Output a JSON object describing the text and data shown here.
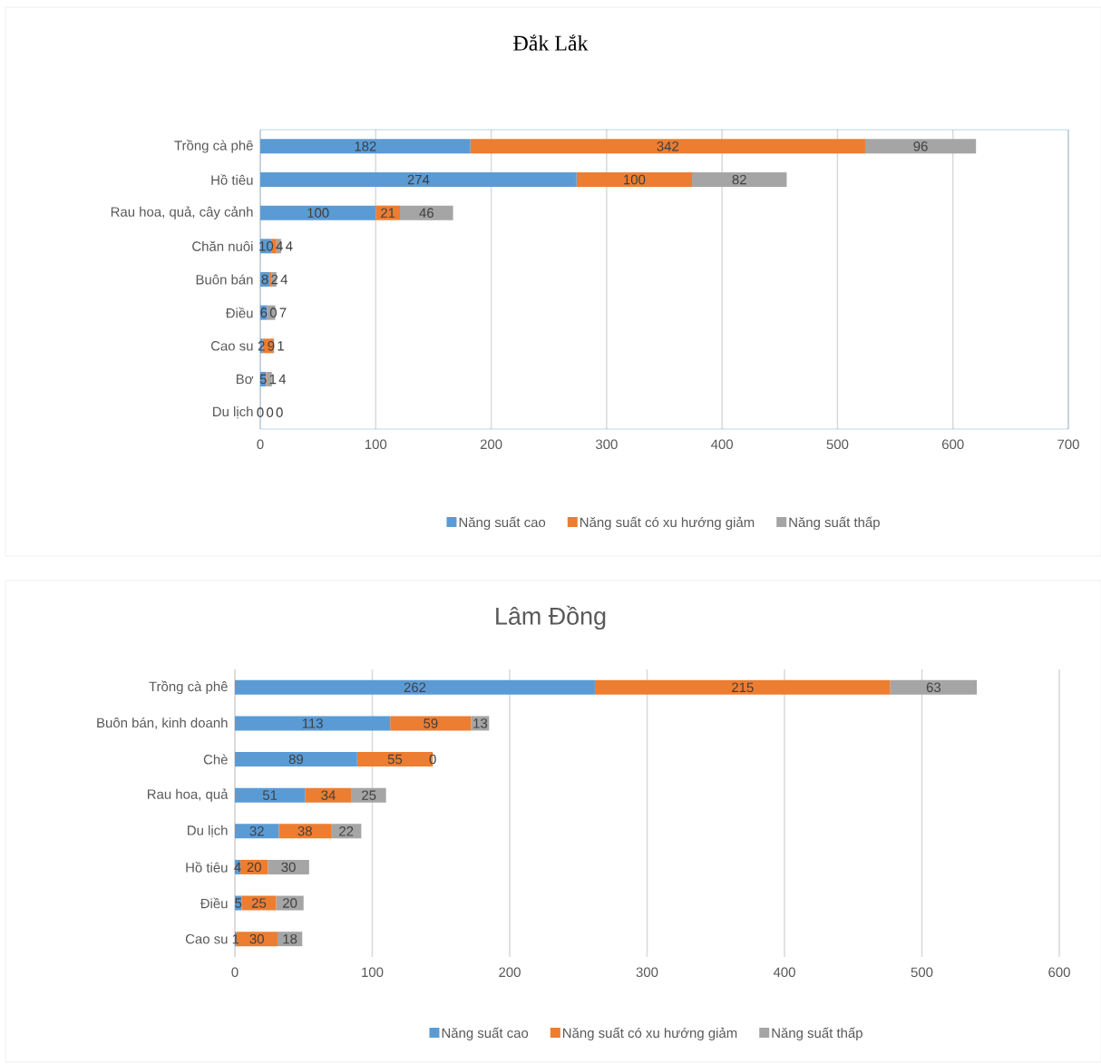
{
  "chart_data": [
    {
      "type": "bar",
      "orientation": "horizontal",
      "stacked": true,
      "title": "Đắk Lắk",
      "categories": [
        "Trồng cà phê",
        "Hồ tiêu",
        "Rau hoa, quả, cây cảnh",
        "Chăn nuôi",
        "Buôn bán",
        "Điều",
        "Cao su",
        "Bơ",
        "Du lịch"
      ],
      "series": [
        {
          "name": "Năng suất cao",
          "color": "#5b9bd5",
          "values": [
            182,
            274,
            100,
            10,
            8,
            6,
            2,
            5,
            0
          ]
        },
        {
          "name": "Năng suất có xu hướng giảm",
          "color": "#ed7d31",
          "values": [
            342,
            100,
            21,
            4,
            2,
            0,
            9,
            1,
            0
          ]
        },
        {
          "name": "Năng suất thấp",
          "color": "#a5a5a5",
          "values": [
            96,
            82,
            46,
            4,
            4,
            7,
            1,
            4,
            0
          ]
        }
      ],
      "xlim": [
        0,
        700
      ],
      "xticks": [
        0,
        100,
        200,
        300,
        400,
        500,
        600,
        700
      ],
      "grid": "x",
      "legend": "bottom",
      "data_labels": true
    },
    {
      "type": "bar",
      "orientation": "horizontal",
      "stacked": true,
      "title": "Lâm Đồng",
      "categories": [
        "Trồng cà phê",
        "Buôn bán, kinh doanh",
        "Chè",
        "Rau hoa, quả",
        "Du lịch",
        "Hồ tiêu",
        "Điều",
        "Cao su"
      ],
      "series": [
        {
          "name": "Năng suất cao",
          "color": "#5b9bd5",
          "values": [
            262,
            113,
            89,
            51,
            32,
            4,
            5,
            1
          ]
        },
        {
          "name": "Năng suất có xu hướng giảm",
          "color": "#ed7d31",
          "values": [
            215,
            59,
            55,
            34,
            38,
            20,
            25,
            30
          ]
        },
        {
          "name": "Năng suất thấp",
          "color": "#a5a5a5",
          "values": [
            63,
            13,
            0,
            25,
            22,
            30,
            20,
            18
          ]
        }
      ],
      "xlim": [
        0,
        600
      ],
      "xticks": [
        0,
        100,
        200,
        300,
        400,
        500,
        600
      ],
      "grid": "x",
      "legend": "bottom",
      "data_labels": true
    }
  ]
}
